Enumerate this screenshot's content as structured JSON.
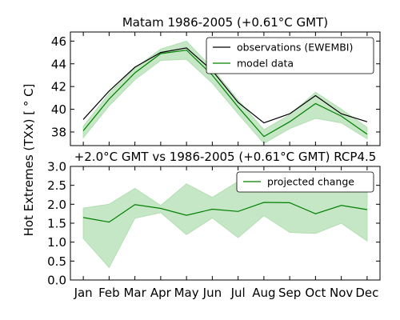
{
  "ylabel": "Hot Extremes (TXx) [$^\\circ C$]",
  "ylabel_display": "Hot Extremes (TXx) [ ° C]",
  "chart_data": [
    {
      "type": "line",
      "title": "Matam 1986-2005 (+0.61°C GMT)",
      "categories": [
        "Jan",
        "Feb",
        "Mar",
        "Apr",
        "May",
        "Jun",
        "Jul",
        "Aug",
        "Sep",
        "Oct",
        "Nov",
        "Dec"
      ],
      "ylim": [
        36.8,
        46.8
      ],
      "yticks": [
        38,
        40,
        42,
        44,
        46
      ],
      "legend_position": "top-right",
      "series": [
        {
          "name": "observations (EWEMBI)",
          "color": "#000000",
          "values": [
            39.1,
            41.6,
            43.7,
            45.0,
            45.4,
            43.4,
            40.6,
            38.8,
            39.6,
            41.2,
            39.6,
            38.9
          ]
        },
        {
          "name": "model data",
          "color": "#008000",
          "band_color": "#b2dfb2",
          "values": [
            38.1,
            40.9,
            43.2,
            44.9,
            45.2,
            43.0,
            40.2,
            37.6,
            38.9,
            40.5,
            39.4,
            37.8
          ],
          "lower": [
            37.5,
            40.3,
            42.6,
            44.3,
            44.4,
            42.3,
            39.6,
            37.0,
            38.3,
            39.2,
            38.8,
            37.4
          ],
          "upper": [
            38.5,
            41.4,
            43.6,
            45.3,
            46.0,
            43.6,
            40.8,
            38.2,
            39.5,
            41.5,
            40.0,
            38.4
          ]
        }
      ]
    },
    {
      "type": "line",
      "title": "+2.0°C GMT vs 1986-2005 (+0.61°C GMT) RCP4.5",
      "categories": [
        "Jan",
        "Feb",
        "Mar",
        "Apr",
        "May",
        "Jun",
        "Jul",
        "Aug",
        "Sep",
        "Oct",
        "Nov",
        "Dec"
      ],
      "ylim": [
        0.0,
        3.0
      ],
      "yticks": [
        "0.0",
        "0.5",
        "1.0",
        "1.5",
        "2.0",
        "2.5",
        "3.0"
      ],
      "legend_position": "top-right",
      "series": [
        {
          "name": "projected change",
          "color": "#008000",
          "band_color": "#b2dfb2",
          "values": [
            1.65,
            1.53,
            1.99,
            1.89,
            1.71,
            1.87,
            1.81,
            2.05,
            2.04,
            1.75,
            1.97,
            1.86
          ],
          "lower": [
            1.1,
            0.33,
            1.63,
            1.78,
            1.2,
            1.64,
            1.12,
            1.7,
            1.26,
            1.23,
            1.5,
            1.03
          ],
          "upper": [
            1.9,
            2.0,
            2.42,
            1.97,
            2.54,
            2.18,
            2.6,
            2.55,
            2.55,
            2.65,
            2.45,
            2.35
          ]
        }
      ]
    }
  ]
}
